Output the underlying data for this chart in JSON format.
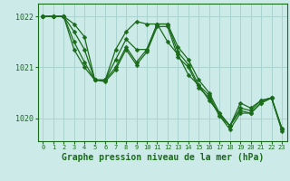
{
  "title": "Graphe pression niveau de la mer (hPa)",
  "background_color": "#cceae7",
  "grid_color": "#aad4d0",
  "line_color": "#1a6b1a",
  "ylim": [
    1019.55,
    1022.25
  ],
  "xlim": [
    -0.5,
    23.5
  ],
  "yticks": [
    1020,
    1021,
    1022
  ],
  "xticks": [
    0,
    1,
    2,
    3,
    4,
    5,
    6,
    7,
    8,
    9,
    10,
    11,
    12,
    13,
    14,
    15,
    16,
    17,
    18,
    19,
    20,
    21,
    22,
    23
  ],
  "series": [
    [
      1022.0,
      1022.0,
      1022.0,
      1021.85,
      1021.6,
      1020.75,
      1020.75,
      1021.35,
      1021.7,
      1021.9,
      1021.85,
      1021.85,
      1021.5,
      1021.25,
      1020.85,
      1020.65,
      1020.35,
      1020.1,
      1019.85,
      1020.3,
      1020.2,
      1020.35,
      1020.4,
      1019.8
    ],
    [
      1022.0,
      1022.0,
      1022.0,
      1021.7,
      1021.35,
      1020.75,
      1020.75,
      1021.15,
      1021.55,
      1021.35,
      1021.35,
      1021.85,
      1021.85,
      1021.4,
      1021.15,
      1020.75,
      1020.5,
      1020.1,
      1019.85,
      1020.2,
      1020.15,
      1020.35,
      1020.4,
      1019.8
    ],
    [
      1022.0,
      1022.0,
      1022.0,
      1021.5,
      1021.1,
      1020.75,
      1020.75,
      1021.0,
      1021.4,
      1021.1,
      1021.35,
      1021.85,
      1021.85,
      1021.3,
      1021.05,
      1020.65,
      1020.45,
      1020.05,
      1019.85,
      1020.15,
      1020.1,
      1020.3,
      1020.4,
      1019.78
    ],
    [
      1022.0,
      1022.0,
      1022.0,
      1021.35,
      1021.0,
      1020.75,
      1020.72,
      1020.95,
      1021.35,
      1021.05,
      1021.3,
      1021.8,
      1021.8,
      1021.2,
      1021.0,
      1020.6,
      1020.4,
      1020.05,
      1019.78,
      1020.1,
      1020.1,
      1020.3,
      1020.4,
      1019.75
    ]
  ],
  "marker": "D",
  "markersize": 2.5,
  "linewidth": 0.9,
  "xlabel_fontsize": 7,
  "xtick_fontsize": 5,
  "ytick_fontsize": 6
}
